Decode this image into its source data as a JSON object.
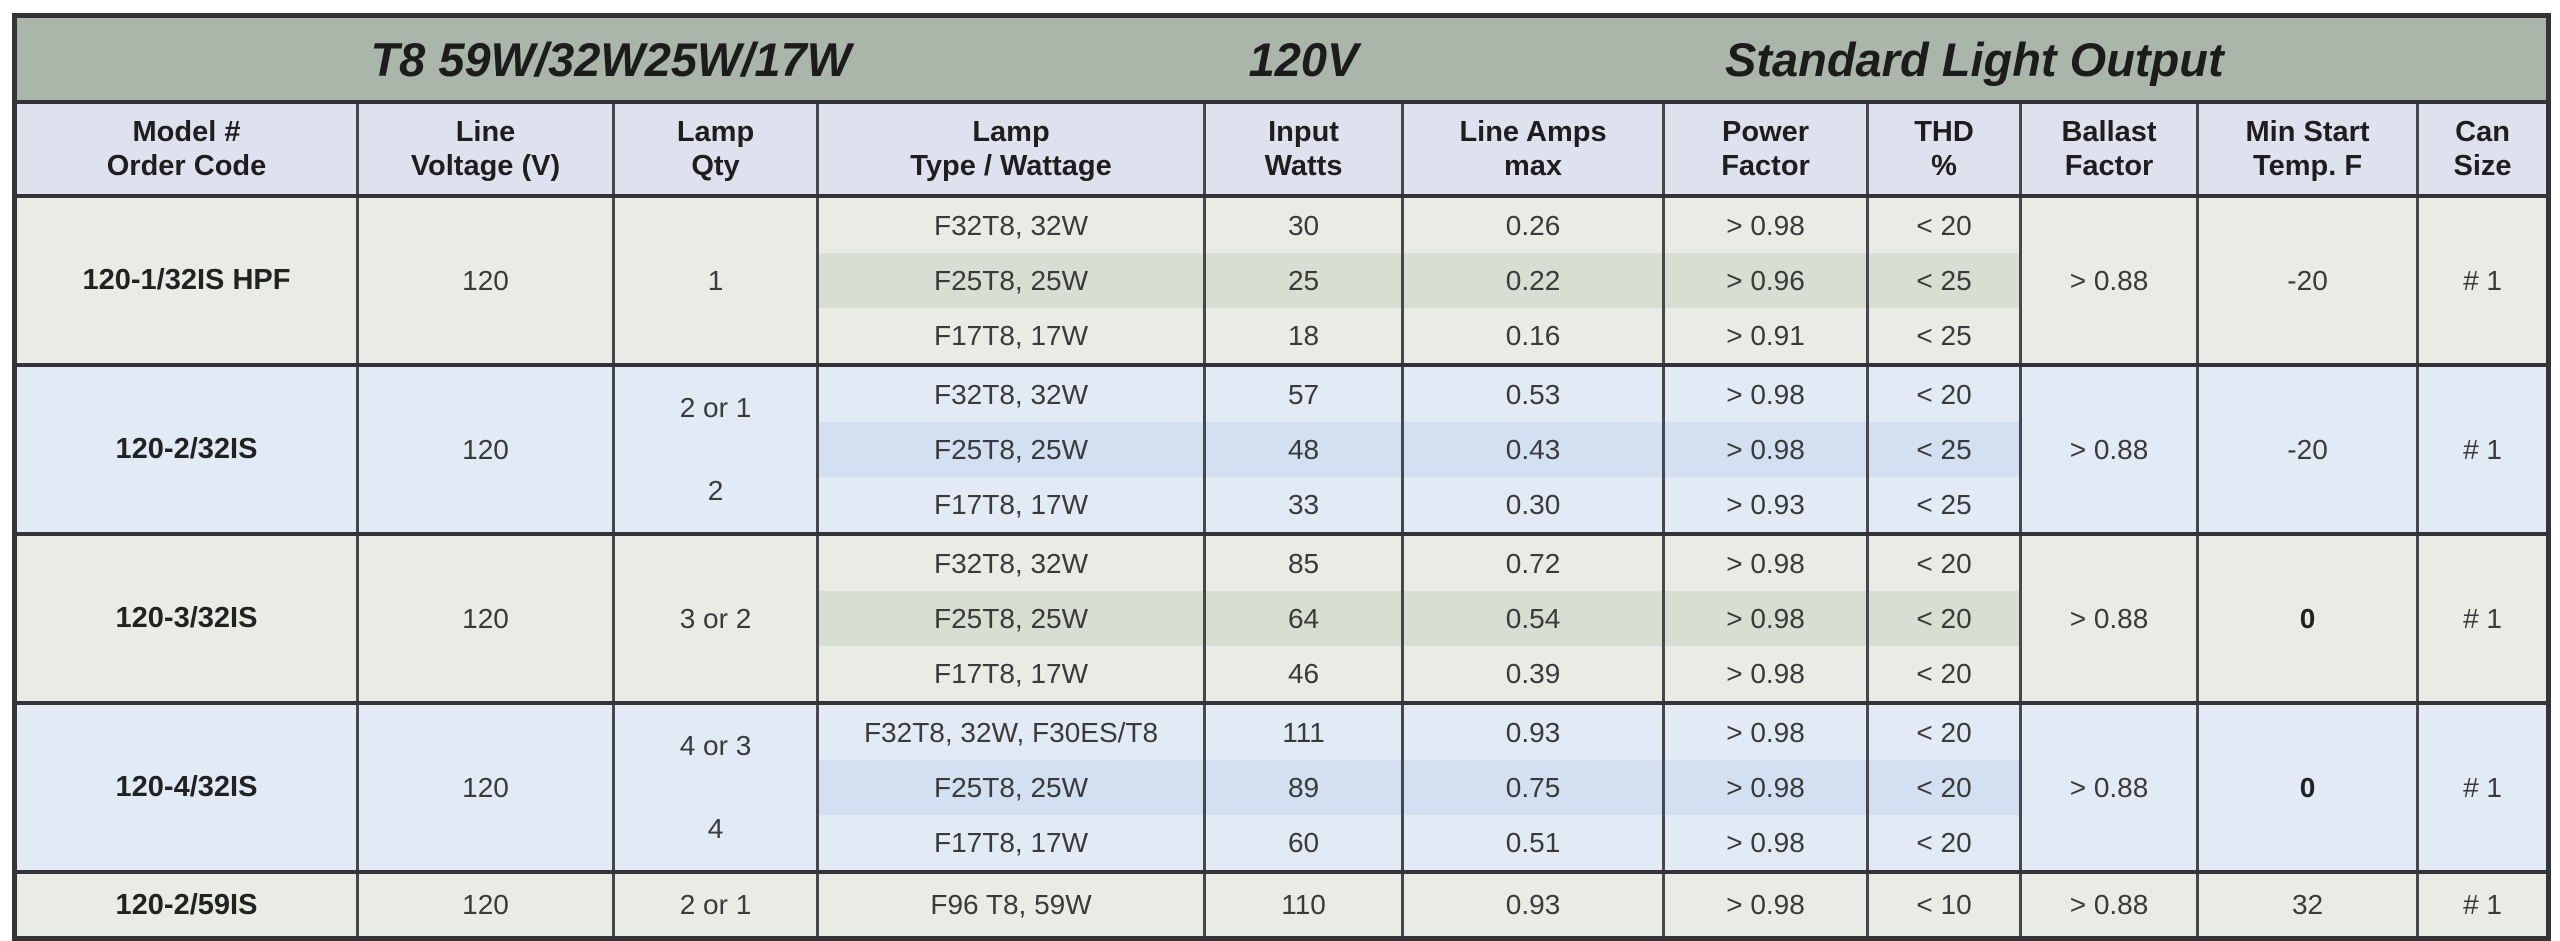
{
  "title": {
    "left": "T8 59W/32W25W/17W",
    "center": "120V",
    "right": "Standard Light Output"
  },
  "headers": [
    {
      "line1": "Model #",
      "line2": "Order Code"
    },
    {
      "line1": "Line",
      "line2": "Voltage (V)"
    },
    {
      "line1": "Lamp",
      "line2": "Qty"
    },
    {
      "line1": "Lamp",
      "line2": "Type / Wattage"
    },
    {
      "line1": "Input",
      "line2": "Watts"
    },
    {
      "line1": "Line Amps",
      "line2": "max"
    },
    {
      "line1": "Power",
      "line2": "Factor"
    },
    {
      "line1": "THD",
      "line2": "%"
    },
    {
      "line1": "Ballast",
      "line2": "Factor"
    },
    {
      "line1": "Min Start",
      "line2": "Temp. F"
    },
    {
      "line1": "Can",
      "line2": "Size"
    }
  ],
  "groups": [
    {
      "model": "120-1/32IS HPF",
      "voltage": "120",
      "qty": [
        "1"
      ],
      "rows": [
        {
          "lamp": "F32T8, 32W",
          "watts": "30",
          "amps": "0.26",
          "pf": "> 0.98",
          "thd": "< 20"
        },
        {
          "lamp": "F25T8, 25W",
          "watts": "25",
          "amps": "0.22",
          "pf": "> 0.96",
          "thd": "< 25"
        },
        {
          "lamp": "F17T8, 17W",
          "watts": "18",
          "amps": "0.16",
          "pf": "> 0.91",
          "thd": "< 25"
        }
      ],
      "ballast_factor": "> 0.88",
      "min_start_temp": "-20",
      "can_size": "# 1"
    },
    {
      "model": "120-2/32IS",
      "voltage": "120",
      "qty": [
        "2 or 1",
        "2"
      ],
      "rows": [
        {
          "lamp": "F32T8, 32W",
          "watts": "57",
          "amps": "0.53",
          "pf": "> 0.98",
          "thd": "< 20"
        },
        {
          "lamp": "F25T8, 25W",
          "watts": "48",
          "amps": "0.43",
          "pf": "> 0.98",
          "thd": "< 25"
        },
        {
          "lamp": "F17T8, 17W",
          "watts": "33",
          "amps": "0.30",
          "pf": "> 0.93",
          "thd": "< 25"
        }
      ],
      "ballast_factor": "> 0.88",
      "min_start_temp": "-20",
      "can_size": "# 1"
    },
    {
      "model": "120-3/32IS",
      "voltage": "120",
      "qty": [
        "3 or 2"
      ],
      "rows": [
        {
          "lamp": "F32T8, 32W",
          "watts": "85",
          "amps": "0.72",
          "pf": "> 0.98",
          "thd": "< 20"
        },
        {
          "lamp": "F25T8, 25W",
          "watts": "64",
          "amps": "0.54",
          "pf": "> 0.98",
          "thd": "< 20"
        },
        {
          "lamp": "F17T8, 17W",
          "watts": "46",
          "amps": "0.39",
          "pf": "> 0.98",
          "thd": "< 20"
        }
      ],
      "ballast_factor": "> 0.88",
      "min_start_temp": "0",
      "can_size": "# 1"
    },
    {
      "model": "120-4/32IS",
      "voltage": "120",
      "qty": [
        "4 or 3",
        "4"
      ],
      "rows": [
        {
          "lamp": "F32T8, 32W, F30ES/T8",
          "watts": "111",
          "amps": "0.93",
          "pf": "> 0.98",
          "thd": "< 20"
        },
        {
          "lamp": "F25T8, 25W",
          "watts": "89",
          "amps": "0.75",
          "pf": "> 0.98",
          "thd": "< 20"
        },
        {
          "lamp": "F17T8, 17W",
          "watts": "60",
          "amps": "0.51",
          "pf": "> 0.98",
          "thd": "< 20"
        }
      ],
      "ballast_factor": "> 0.88",
      "min_start_temp": "0",
      "can_size": "# 1"
    },
    {
      "model": "120-2/59IS",
      "voltage": "120",
      "qty": [
        "2 or 1"
      ],
      "rows": [
        {
          "lamp": "F96 T8, 59W",
          "watts": "110",
          "amps": "0.93",
          "pf": "> 0.98",
          "thd": "< 10"
        }
      ],
      "ballast_factor": "> 0.88",
      "min_start_temp": "32",
      "can_size": "# 1"
    }
  ],
  "colors": {
    "title_bar": "#a9b6a9",
    "header_bg": "#dfe1ef",
    "group_green_bg": "#e9ece4",
    "group_green_stripe": "#d8ded1",
    "group_blue_bg": "#e2eaf6",
    "group_blue_stripe": "#d2e0f1",
    "border_dark": "#343438"
  }
}
